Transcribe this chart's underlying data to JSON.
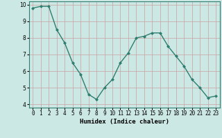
{
  "x": [
    0,
    1,
    2,
    3,
    4,
    5,
    6,
    7,
    8,
    9,
    10,
    11,
    12,
    13,
    14,
    15,
    16,
    17,
    18,
    19,
    20,
    21,
    22,
    23
  ],
  "y": [
    9.8,
    9.9,
    9.9,
    8.5,
    7.7,
    6.5,
    5.8,
    4.6,
    4.3,
    5.0,
    5.5,
    6.5,
    7.1,
    8.0,
    8.1,
    8.3,
    8.3,
    7.5,
    6.9,
    6.3,
    5.5,
    5.0,
    4.4,
    4.5
  ],
  "xlabel": "Humidex (Indice chaleur)",
  "ylim": [
    3.8,
    10.2
  ],
  "xlim": [
    -0.5,
    23.5
  ],
  "yticks": [
    4,
    5,
    6,
    7,
    8,
    9,
    10
  ],
  "xtick_labels": [
    "0",
    "1",
    "2",
    "3",
    "4",
    "5",
    "6",
    "7",
    "8",
    "9",
    "10",
    "11",
    "12",
    "13",
    "14",
    "15",
    "16",
    "17",
    "18",
    "19",
    "20",
    "21",
    "22",
    "23"
  ],
  "line_color": "#2e7d6e",
  "marker": "D",
  "marker_size": 2.0,
  "bg_color": "#cce8e4",
  "grid_color": "#c8a0a0",
  "tick_fontsize": 5.5,
  "xlabel_fontsize": 6.5
}
